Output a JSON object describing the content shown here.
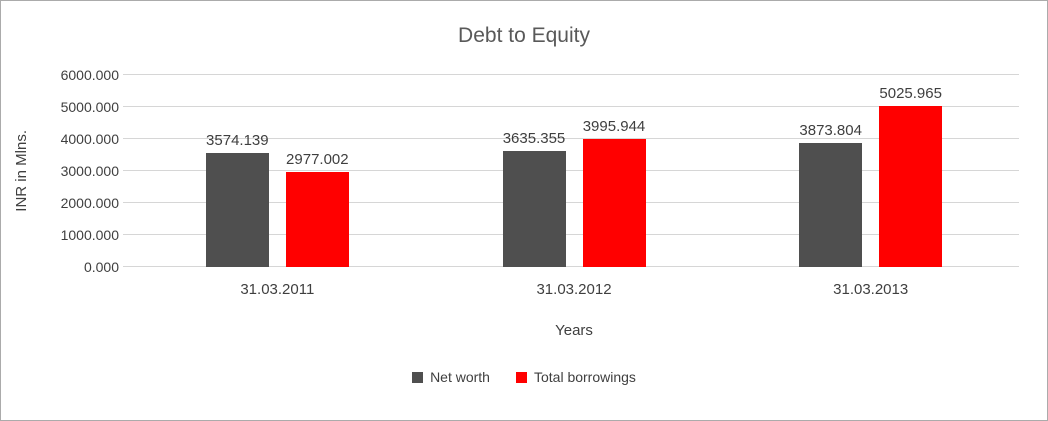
{
  "chart_data": {
    "type": "bar",
    "title": "Debt to Equity",
    "xlabel": "Years",
    "ylabel": "INR in Mlns.",
    "categories": [
      "31.03.2011",
      "31.03.2012",
      "31.03.2013"
    ],
    "series": [
      {
        "name": "Net worth",
        "color": "#4f4f4f",
        "values": [
          3574.139,
          3635.355,
          3873.804
        ]
      },
      {
        "name": "Total borrowings",
        "color": "#ff0000",
        "values": [
          2977.002,
          3995.944,
          5025.965
        ]
      }
    ],
    "ylim": [
      0,
      6000
    ],
    "ytick_step": 1000,
    "tick_decimals": 3,
    "label_decimals": 3,
    "grid": true,
    "legend_position": "bottom"
  },
  "colors": {
    "title_text": "#595959",
    "axis_text": "#3f3f3f",
    "gridline": "#d6d6d6",
    "frame_border": "#ababab"
  }
}
